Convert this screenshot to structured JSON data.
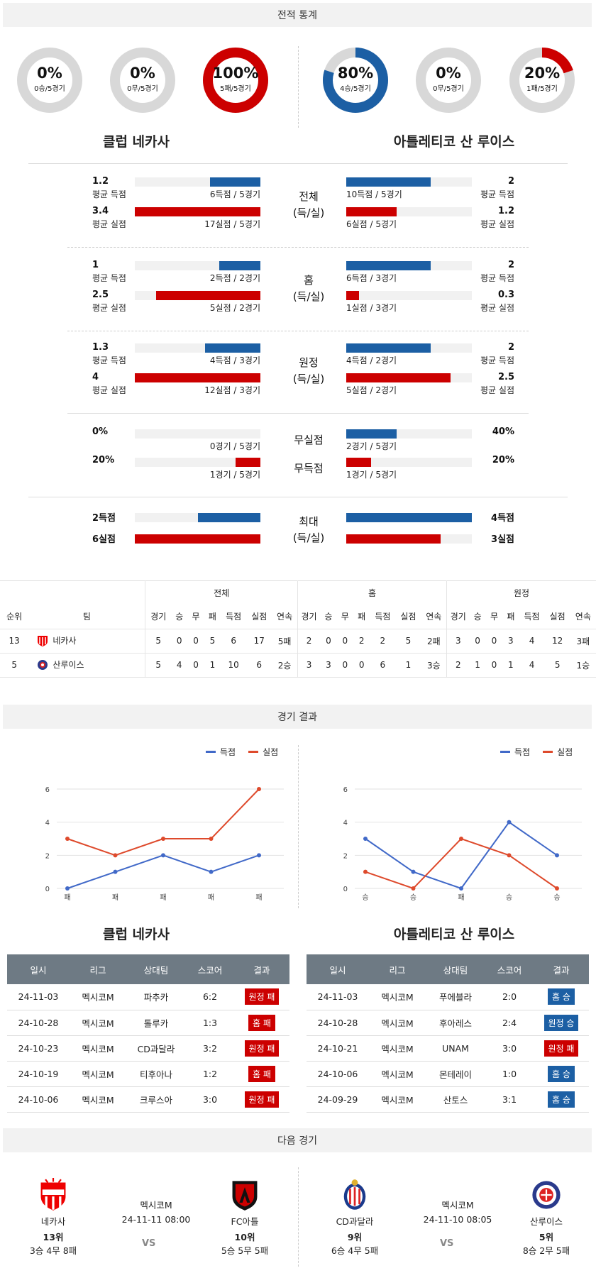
{
  "sections": {
    "stats": "전적 통계",
    "results": "경기 결과",
    "next": "다음 경기"
  },
  "colors": {
    "blue": "#1c5fa4",
    "red": "#cc0000",
    "gray": "#d8d8d8"
  },
  "donuts": [
    {
      "pct": "0%",
      "sub": "0승/5경기",
      "value": 0,
      "color": "#1c5fa4"
    },
    {
      "pct": "0%",
      "sub": "0무/5경기",
      "value": 0,
      "color": "#1c5fa4"
    },
    {
      "pct": "100%",
      "sub": "5패/5경기",
      "value": 100,
      "color": "#cc0000"
    },
    {
      "pct": "80%",
      "sub": "4승/5경기",
      "value": 80,
      "color": "#1c5fa4"
    },
    {
      "pct": "0%",
      "sub": "0무/5경기",
      "value": 0,
      "color": "#1c5fa4"
    },
    {
      "pct": "20%",
      "sub": "1패/5경기",
      "value": 20,
      "color": "#cc0000"
    }
  ],
  "teams": {
    "home": "클럽 네카사",
    "away": "아틀레티코 산 루이스"
  },
  "compare": [
    {
      "mid": [
        "전체",
        "(득/실)"
      ],
      "home": [
        {
          "val": "1.2",
          "lbl": "평균 득점",
          "cap": "6득점 / 5경기",
          "ratio": 0.4
        },
        {
          "val": "3.4",
          "lbl": "평균 실점",
          "cap": "17실점 / 5경기",
          "ratio": 1.0
        }
      ],
      "away": [
        {
          "val": "2",
          "lbl": "평균 득점",
          "cap": "10득점 / 5경기",
          "ratio": 0.67
        },
        {
          "val": "1.2",
          "lbl": "평균 실점",
          "cap": "6실점 / 5경기",
          "ratio": 0.4
        }
      ]
    },
    {
      "mid": [
        "홈",
        "(득/실)"
      ],
      "home": [
        {
          "val": "1",
          "lbl": "평균 득점",
          "cap": "2득점 / 2경기",
          "ratio": 0.33
        },
        {
          "val": "2.5",
          "lbl": "평균 실점",
          "cap": "5실점 / 2경기",
          "ratio": 0.83
        }
      ],
      "away": [
        {
          "val": "2",
          "lbl": "평균 득점",
          "cap": "6득점 / 3경기",
          "ratio": 0.67
        },
        {
          "val": "0.3",
          "lbl": "평균 실점",
          "cap": "1실점 / 3경기",
          "ratio": 0.1
        }
      ]
    },
    {
      "mid": [
        "원정",
        "(득/실)"
      ],
      "home": [
        {
          "val": "1.3",
          "lbl": "평균 득점",
          "cap": "4득점 / 3경기",
          "ratio": 0.44
        },
        {
          "val": "4",
          "lbl": "평균 실점",
          "cap": "12실점 / 3경기",
          "ratio": 1.0
        }
      ],
      "away": [
        {
          "val": "2",
          "lbl": "평균 득점",
          "cap": "4득점 / 2경기",
          "ratio": 0.67
        },
        {
          "val": "2.5",
          "lbl": "평균 실점",
          "cap": "5실점 / 2경기",
          "ratio": 0.83
        }
      ]
    }
  ],
  "cleansheet": {
    "mid1": "무실점",
    "mid2": "무득점",
    "home": [
      {
        "val": "0%",
        "cap": "0경기 / 5경기",
        "ratio": 0
      },
      {
        "val": "20%",
        "cap": "1경기 / 5경기",
        "ratio": 0.2
      }
    ],
    "away": [
      {
        "val": "40%",
        "cap": "2경기 / 5경기",
        "ratio": 0.4
      },
      {
        "val": "20%",
        "cap": "1경기 / 5경기",
        "ratio": 0.2
      }
    ]
  },
  "maxrow": {
    "mid": [
      "최대",
      "(득/실)"
    ],
    "home": [
      {
        "val": "2득점",
        "ratio": 0.5
      },
      {
        "val": "6실점",
        "ratio": 1.0
      }
    ],
    "away": [
      {
        "val": "4득점",
        "ratio": 1.0
      },
      {
        "val": "3실점",
        "ratio": 0.75
      }
    ]
  },
  "standings": {
    "groups": [
      "전체",
      "홈",
      "원정"
    ],
    "headers": [
      "순위",
      "팀",
      "경기",
      "승",
      "무",
      "패",
      "득점",
      "실점",
      "연속",
      "경기",
      "승",
      "무",
      "패",
      "득점",
      "실점",
      "연속",
      "경기",
      "승",
      "무",
      "패",
      "득점",
      "실점",
      "연속"
    ],
    "rows": [
      {
        "rank": "13",
        "team": "네카사",
        "cells": [
          "5",
          "0",
          "0",
          "5",
          "6",
          "17",
          "5패",
          "2",
          "0",
          "0",
          "2",
          "2",
          "5",
          "2패",
          "3",
          "0",
          "0",
          "3",
          "4",
          "12",
          "3패"
        ]
      },
      {
        "rank": "5",
        "team": "산루이스",
        "cells": [
          "5",
          "4",
          "0",
          "1",
          "10",
          "6",
          "2승",
          "3",
          "3",
          "0",
          "0",
          "6",
          "1",
          "3승",
          "2",
          "1",
          "0",
          "1",
          "4",
          "5",
          "1승"
        ]
      }
    ]
  },
  "legend": {
    "scored": "득점",
    "conceded": "실점"
  },
  "chart_data": [
    {
      "type": "line",
      "title": "",
      "x": [
        "패",
        "패",
        "패",
        "패",
        "패"
      ],
      "ylim": [
        0,
        6
      ],
      "yticks": [
        0,
        2,
        4,
        6
      ],
      "series": [
        {
          "name": "득점",
          "color": "#4169c8",
          "values": [
            0,
            1,
            2,
            1,
            2
          ]
        },
        {
          "name": "실점",
          "color": "#de4a2c",
          "values": [
            3,
            2,
            3,
            3,
            6
          ]
        }
      ]
    },
    {
      "type": "line",
      "title": "",
      "x": [
        "승",
        "승",
        "패",
        "승",
        "승"
      ],
      "ylim": [
        0,
        6
      ],
      "yticks": [
        0,
        2,
        4,
        6
      ],
      "series": [
        {
          "name": "득점",
          "color": "#4169c8",
          "values": [
            3,
            1,
            0,
            4,
            2
          ]
        },
        {
          "name": "실점",
          "color": "#de4a2c",
          "values": [
            1,
            0,
            3,
            2,
            0
          ]
        }
      ]
    }
  ],
  "results": {
    "headers": [
      "일시",
      "리그",
      "상대팀",
      "스코어",
      "결과"
    ],
    "home": [
      {
        "date": "24-11-03",
        "league": "멕시코M",
        "opp": "파추카",
        "score": "6:2",
        "res": "원정 패",
        "type": "loss"
      },
      {
        "date": "24-10-28",
        "league": "멕시코M",
        "opp": "톨루카",
        "score": "1:3",
        "res": "홈 패",
        "type": "loss"
      },
      {
        "date": "24-10-23",
        "league": "멕시코M",
        "opp": "CD과달라",
        "score": "3:2",
        "res": "원정 패",
        "type": "loss"
      },
      {
        "date": "24-10-19",
        "league": "멕시코M",
        "opp": "티후아나",
        "score": "1:2",
        "res": "홈 패",
        "type": "loss"
      },
      {
        "date": "24-10-06",
        "league": "멕시코M",
        "opp": "크루스아",
        "score": "3:0",
        "res": "원정 패",
        "type": "loss"
      }
    ],
    "away": [
      {
        "date": "24-11-03",
        "league": "멕시코M",
        "opp": "푸에블라",
        "score": "2:0",
        "res": "홈 승",
        "type": "win"
      },
      {
        "date": "24-10-28",
        "league": "멕시코M",
        "opp": "후아레스",
        "score": "2:4",
        "res": "원정 승",
        "type": "win"
      },
      {
        "date": "24-10-21",
        "league": "멕시코M",
        "opp": "UNAM",
        "score": "3:0",
        "res": "원정 패",
        "type": "loss"
      },
      {
        "date": "24-10-06",
        "league": "멕시코M",
        "opp": "몬테레이",
        "score": "1:0",
        "res": "홈 승",
        "type": "win"
      },
      {
        "date": "24-09-29",
        "league": "멕시코M",
        "opp": "산토스",
        "score": "3:1",
        "res": "홈 승",
        "type": "win"
      }
    ]
  },
  "next": [
    {
      "league": "멕시코M",
      "time": "24-11-11 08:00",
      "vs": "VS",
      "a": {
        "name": "네카사",
        "rank": "13위",
        "rec": "3승 4무 8패",
        "logo": "necaxa-logo"
      },
      "b": {
        "name": "FC아틀",
        "rank": "10위",
        "rec": "5승 5무 5패",
        "logo": "atlas-logo"
      }
    },
    {
      "league": "멕시코M",
      "time": "24-11-10 08:05",
      "vs": "VS",
      "a": {
        "name": "CD과달라",
        "rank": "9위",
        "rec": "6승 4무 5패",
        "logo": "chivas-logo"
      },
      "b": {
        "name": "산루이스",
        "rank": "5위",
        "rec": "8승 2무 5패",
        "logo": "san-luis-logo"
      }
    }
  ]
}
